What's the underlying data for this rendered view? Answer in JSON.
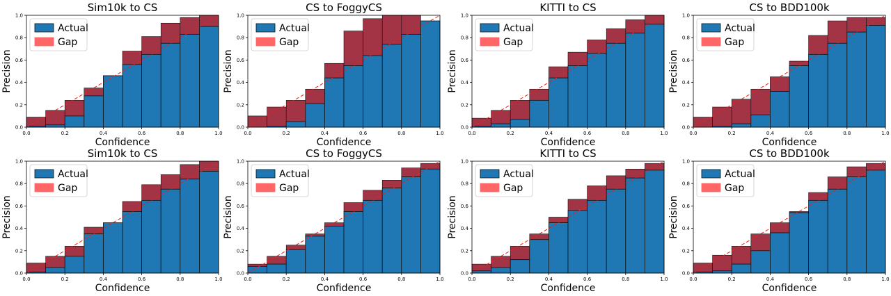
{
  "legend": {
    "actual": "Actual",
    "gap": "Gap"
  },
  "colors": {
    "actual": "#1f77b4",
    "gap_under": "#ff6666",
    "gap_over": "#9b2335",
    "diagonal": "#e8211f",
    "edge": "#111111"
  },
  "chart_data": [
    {
      "type": "bar",
      "title": "Sim10k to CS",
      "xlabel": "Confidence",
      "ylabel": "Precision",
      "xlim": [
        0,
        1
      ],
      "ylim": [
        0,
        1
      ],
      "xticks": [
        "0.0",
        "0.2",
        "0.4",
        "0.6",
        "0.8",
        "1.0"
      ],
      "yticks": [
        "0.0",
        "0.2",
        "0.4",
        "0.6",
        "0.8",
        "1.0"
      ],
      "legend_position": "top-left",
      "bin_edges": [
        0,
        0.1,
        0.2,
        0.3,
        0.4,
        0.5,
        0.6,
        0.7,
        0.8,
        0.9,
        1.0
      ],
      "series": [
        {
          "name": "Actual",
          "values": [
            0.01,
            0.02,
            0.1,
            0.28,
            0.46,
            0.56,
            0.65,
            0.75,
            0.83,
            0.9
          ]
        },
        {
          "name": "Gap",
          "values": [
            0.09,
            0.15,
            0.24,
            0.35,
            0.45,
            0.68,
            0.81,
            0.93,
            0.98,
            1.0
          ]
        }
      ]
    },
    {
      "type": "bar",
      "title": "CS to FoggyCS",
      "xlabel": "Confidence",
      "ylabel": "Precision",
      "xlim": [
        0,
        1
      ],
      "ylim": [
        0,
        1
      ],
      "xticks": [
        "0.0",
        "0.2",
        "0.4",
        "0.6",
        "0.8",
        "1.0"
      ],
      "yticks": [
        "0.0",
        "0.2",
        "0.4",
        "0.6",
        "0.8",
        "1.0"
      ],
      "legend_position": "top-left",
      "bin_edges": [
        0,
        0.1,
        0.2,
        0.3,
        0.4,
        0.5,
        0.6,
        0.7,
        0.8,
        0.9,
        1.0
      ],
      "series": [
        {
          "name": "Actual",
          "values": [
            0.0,
            0.01,
            0.05,
            0.21,
            0.44,
            0.55,
            0.64,
            0.74,
            0.83,
            0.95
          ]
        },
        {
          "name": "Gap",
          "values": [
            0.1,
            0.18,
            0.24,
            0.34,
            0.57,
            0.86,
            0.97,
            1.0,
            1.0,
            0.95
          ]
        }
      ]
    },
    {
      "type": "bar",
      "title": "KITTI to CS",
      "xlabel": "Confidence",
      "ylabel": "Precision",
      "xlim": [
        0,
        1
      ],
      "ylim": [
        0,
        1
      ],
      "xticks": [
        "0.0",
        "0.2",
        "0.4",
        "0.6",
        "0.8",
        "1.0"
      ],
      "yticks": [
        "0.0",
        "0.2",
        "0.4",
        "0.6",
        "0.8",
        "1.0"
      ],
      "legend_position": "top-left",
      "bin_edges": [
        0,
        0.1,
        0.2,
        0.3,
        0.4,
        0.5,
        0.6,
        0.7,
        0.8,
        0.9,
        1.0
      ],
      "series": [
        {
          "name": "Actual",
          "values": [
            0.01,
            0.03,
            0.07,
            0.24,
            0.44,
            0.55,
            0.66,
            0.75,
            0.84,
            0.92
          ]
        },
        {
          "name": "Gap",
          "values": [
            0.08,
            0.15,
            0.24,
            0.34,
            0.54,
            0.67,
            0.78,
            0.88,
            0.96,
            1.0
          ]
        }
      ]
    },
    {
      "type": "bar",
      "title": "CS to BDD100k",
      "xlabel": "Confidence",
      "ylabel": "Precision",
      "xlim": [
        0,
        1
      ],
      "ylim": [
        0,
        1
      ],
      "xticks": [
        "0.0",
        "0.2",
        "0.4",
        "0.6",
        "0.8",
        "1.0"
      ],
      "yticks": [
        "0.0",
        "0.2",
        "0.4",
        "0.6",
        "0.8",
        "1.0"
      ],
      "legend_position": "top-left",
      "bin_edges": [
        0,
        0.1,
        0.2,
        0.3,
        0.4,
        0.5,
        0.6,
        0.7,
        0.8,
        0.9,
        1.0
      ],
      "series": [
        {
          "name": "Actual",
          "values": [
            0.0,
            0.01,
            0.03,
            0.11,
            0.32,
            0.55,
            0.65,
            0.75,
            0.85,
            0.91
          ]
        },
        {
          "name": "Gap",
          "values": [
            0.09,
            0.18,
            0.25,
            0.34,
            0.45,
            0.59,
            0.82,
            0.95,
            0.98,
            0.98
          ]
        }
      ]
    },
    {
      "type": "bar",
      "title": "Sim10k to CS",
      "xlabel": "Confidence",
      "ylabel": "Precision",
      "xlim": [
        0,
        1
      ],
      "ylim": [
        0,
        1
      ],
      "xticks": [
        "0.0",
        "0.2",
        "0.4",
        "0.6",
        "0.8",
        "1.0"
      ],
      "yticks": [
        "0.0",
        "0.2",
        "0.4",
        "0.6",
        "0.8",
        "1.0"
      ],
      "legend_position": "top-left",
      "bin_edges": [
        0,
        0.1,
        0.2,
        0.3,
        0.4,
        0.5,
        0.6,
        0.7,
        0.8,
        0.9,
        1.0
      ],
      "series": [
        {
          "name": "Actual",
          "values": [
            0.01,
            0.05,
            0.15,
            0.35,
            0.45,
            0.55,
            0.65,
            0.75,
            0.84,
            0.91
          ]
        },
        {
          "name": "Gap",
          "values": [
            0.09,
            0.15,
            0.24,
            0.41,
            0.45,
            0.64,
            0.79,
            0.88,
            0.97,
            1.0
          ]
        }
      ]
    },
    {
      "type": "bar",
      "title": "CS to FoggyCS",
      "xlabel": "Confidence",
      "ylabel": "Precision",
      "xlim": [
        0,
        1
      ],
      "ylim": [
        0,
        1
      ],
      "xticks": [
        "0.0",
        "0.2",
        "0.4",
        "0.6",
        "0.8",
        "1.0"
      ],
      "yticks": [
        "0.0",
        "0.2",
        "0.4",
        "0.6",
        "0.8",
        "1.0"
      ],
      "legend_position": "top-left",
      "bin_edges": [
        0,
        0.1,
        0.2,
        0.3,
        0.4,
        0.5,
        0.6,
        0.7,
        0.8,
        0.9,
        1.0
      ],
      "series": [
        {
          "name": "Actual",
          "values": [
            0.06,
            0.08,
            0.21,
            0.33,
            0.42,
            0.55,
            0.65,
            0.76,
            0.86,
            0.93
          ]
        },
        {
          "name": "Gap",
          "values": [
            0.08,
            0.15,
            0.25,
            0.35,
            0.45,
            0.63,
            0.74,
            0.83,
            0.94,
            0.98
          ]
        }
      ]
    },
    {
      "type": "bar",
      "title": "KITTI to CS",
      "xlabel": "Confidence",
      "ylabel": "Precision",
      "xlim": [
        0,
        1
      ],
      "ylim": [
        0,
        1
      ],
      "xticks": [
        "0.0",
        "0.2",
        "0.4",
        "0.6",
        "0.8",
        "1.0"
      ],
      "yticks": [
        "0.0",
        "0.2",
        "0.4",
        "0.6",
        "0.8",
        "1.0"
      ],
      "legend_position": "top-left",
      "bin_edges": [
        0,
        0.1,
        0.2,
        0.3,
        0.4,
        0.5,
        0.6,
        0.7,
        0.8,
        0.9,
        1.0
      ],
      "series": [
        {
          "name": "Actual",
          "values": [
            0.02,
            0.05,
            0.12,
            0.3,
            0.45,
            0.56,
            0.65,
            0.75,
            0.85,
            0.92
          ]
        },
        {
          "name": "Gap",
          "values": [
            0.08,
            0.15,
            0.24,
            0.35,
            0.5,
            0.66,
            0.78,
            0.87,
            0.93,
            0.98
          ]
        }
      ]
    },
    {
      "type": "bar",
      "title": "CS to BDD100k",
      "xlabel": "Confidence",
      "ylabel": "Precision",
      "xlim": [
        0,
        1
      ],
      "ylim": [
        0,
        1
      ],
      "xticks": [
        "0.0",
        "0.2",
        "0.4",
        "0.6",
        "0.8",
        "1.0"
      ],
      "yticks": [
        "0.0",
        "0.2",
        "0.4",
        "0.6",
        "0.8",
        "1.0"
      ],
      "legend_position": "top-left",
      "bin_edges": [
        0,
        0.1,
        0.2,
        0.3,
        0.4,
        0.5,
        0.6,
        0.7,
        0.8,
        0.9,
        1.0
      ],
      "series": [
        {
          "name": "Actual",
          "values": [
            0.01,
            0.02,
            0.08,
            0.2,
            0.36,
            0.54,
            0.65,
            0.75,
            0.86,
            0.92
          ]
        },
        {
          "name": "Gap",
          "values": [
            0.09,
            0.16,
            0.24,
            0.35,
            0.45,
            0.55,
            0.72,
            0.86,
            0.95,
            0.98
          ]
        }
      ]
    }
  ]
}
